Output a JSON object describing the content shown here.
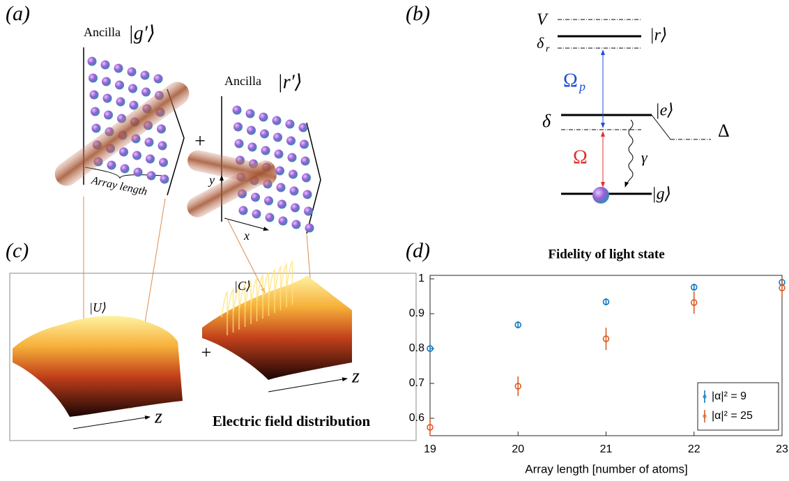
{
  "panel_labels": [
    "(a)",
    "(b)",
    "(c)",
    "(d)"
  ],
  "panel_a": {
    "ancilla_1": "Ancilla",
    "state_1": "|g′⟩",
    "plus": "+",
    "ancilla_2": "Ancilla",
    "state_2": "|r′⟩",
    "array_length": "Array length",
    "y_axis": "y⃗",
    "x_axis": "x⃗"
  },
  "panel_b": {
    "V": "V",
    "r": "|r⟩",
    "delta_r": "δ",
    "delta_r_sub": "r",
    "omega_p": "Ω",
    "omega_p_sub": "p",
    "delta": "δ",
    "e": "|e⟩",
    "Delta": "Δ",
    "omega": "Ω",
    "gamma": "γ",
    "g": "|g⟩"
  },
  "panel_c": {
    "U": "|U⟩",
    "plus": "+",
    "C": "|C⟩",
    "z_1": "z⃗",
    "z_2": "z⃗",
    "caption": "Electric field distribution"
  },
  "chart_data": {
    "type": "scatter",
    "title": "Fidelity of light state",
    "x_label": "Array length [number of atoms]",
    "x": [
      19,
      20,
      21,
      22,
      23
    ],
    "series": [
      {
        "name": "|α|² = 9",
        "color": "#0072bd",
        "values": [
          0.8,
          0.868,
          0.934,
          0.976,
          0.99
        ],
        "errors": [
          0.008,
          0.01,
          0.01,
          0.01,
          0.01
        ]
      },
      {
        "name": "|α|² = 25",
        "color": "#d95319",
        "values": [
          0.574,
          0.692,
          0.828,
          0.932,
          0.974
        ],
        "errors": [
          0.025,
          0.028,
          0.032,
          0.032,
          0.028
        ]
      }
    ],
    "xlim": [
      19,
      23
    ],
    "ylim": [
      0.55,
      1.01
    ],
    "xticks": [
      19,
      20,
      21,
      22,
      23
    ],
    "yticks": [
      0.6,
      0.7,
      0.8,
      0.9,
      1
    ],
    "legend": "lower right"
  }
}
